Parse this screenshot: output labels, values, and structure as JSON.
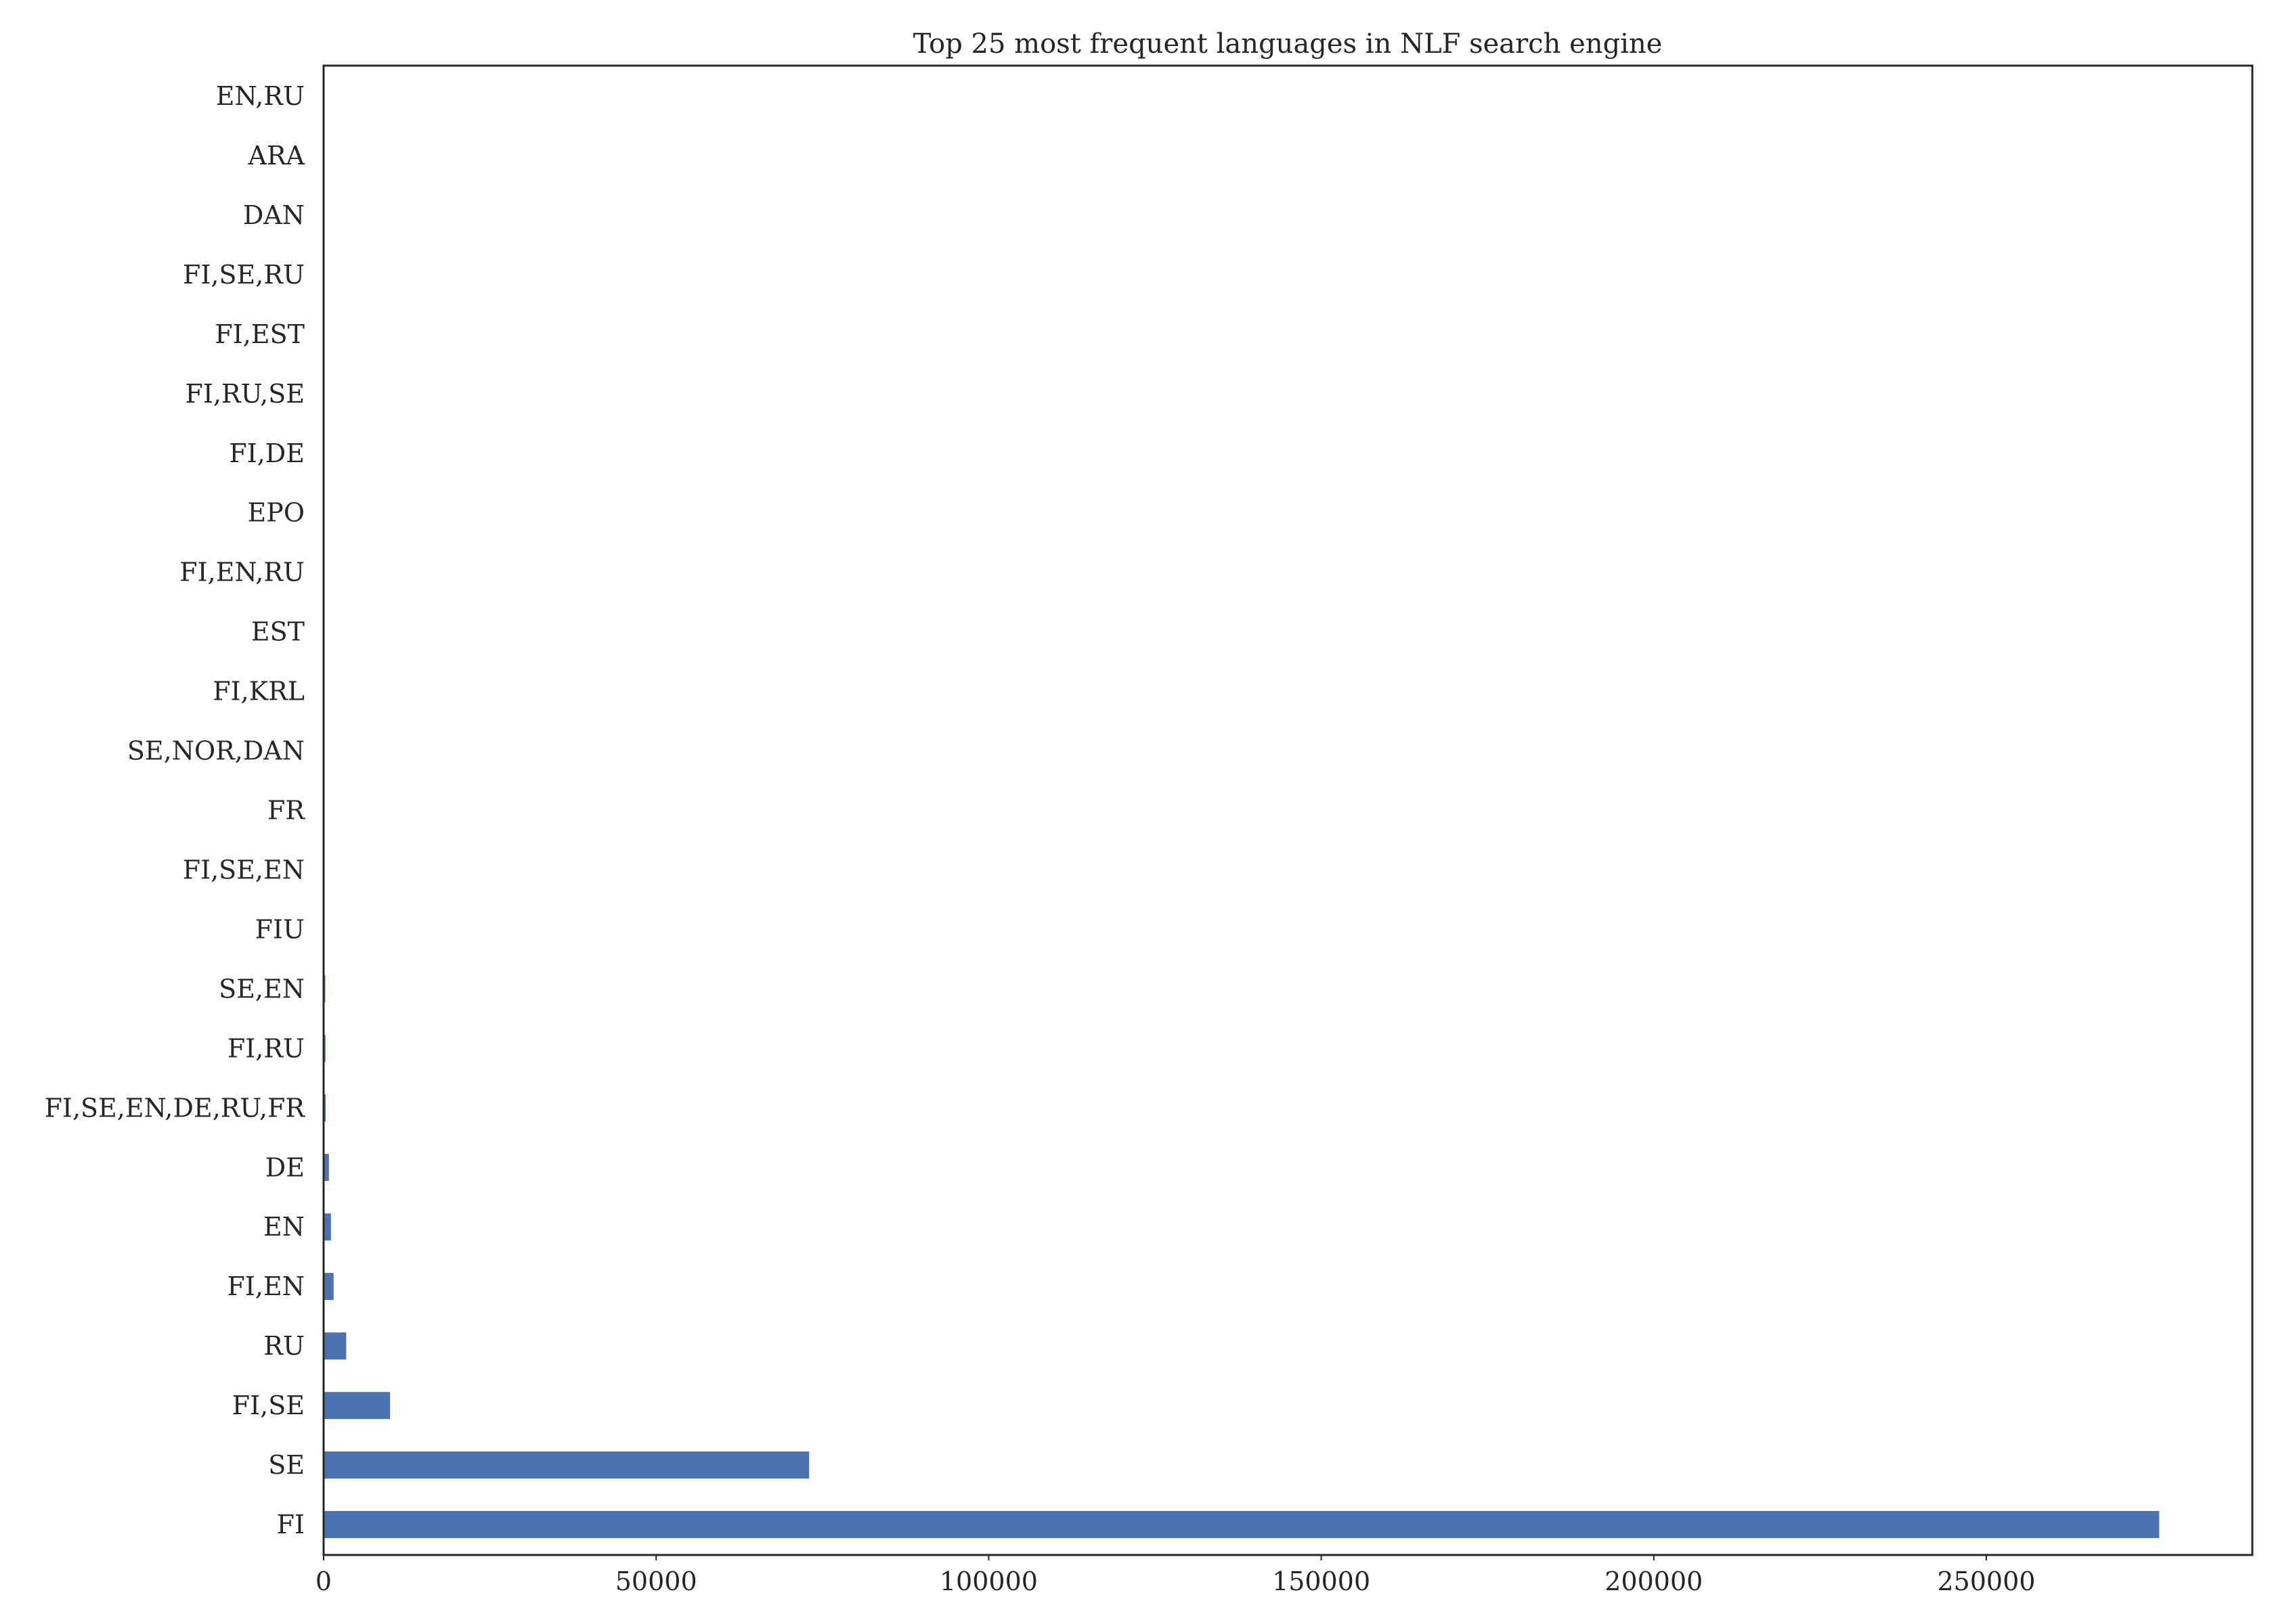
{
  "chart_data": {
    "type": "bar",
    "orientation": "horizontal",
    "title": "Top 25 most frequent languages in NLF search engine",
    "xlabel": "",
    "ylabel": "",
    "grid": false,
    "legend": "none",
    "bar_color": "#4c72b0",
    "xlim": [
      0,
      290000
    ],
    "xticks": [
      0,
      50000,
      100000,
      150000,
      200000,
      250000
    ],
    "xtick_labels": [
      "0",
      "50000",
      "100000",
      "150000",
      "200000",
      "250000"
    ],
    "categories": [
      "FI",
      "SE",
      "FI,SE",
      "RU",
      "FI,EN",
      "EN",
      "DE",
      "FI,SE,EN,DE,RU,FR",
      "FI,RU",
      "SE,EN",
      "FIU",
      "FI,SE,EN",
      "FR",
      "SE,NOR,DAN",
      "FI,KRL",
      "EST",
      "FI,EN,RU",
      "EPO",
      "FI,DE",
      "FI,RU,SE",
      "FI,EST",
      "FI,SE,RU",
      "DAN",
      "ARA",
      "EN,RU"
    ],
    "values": [
      276000,
      73000,
      10000,
      3400,
      1500,
      1100,
      800,
      300,
      280,
      250,
      120,
      100,
      90,
      80,
      70,
      60,
      50,
      40,
      35,
      30,
      25,
      20,
      15,
      10,
      8
    ]
  }
}
